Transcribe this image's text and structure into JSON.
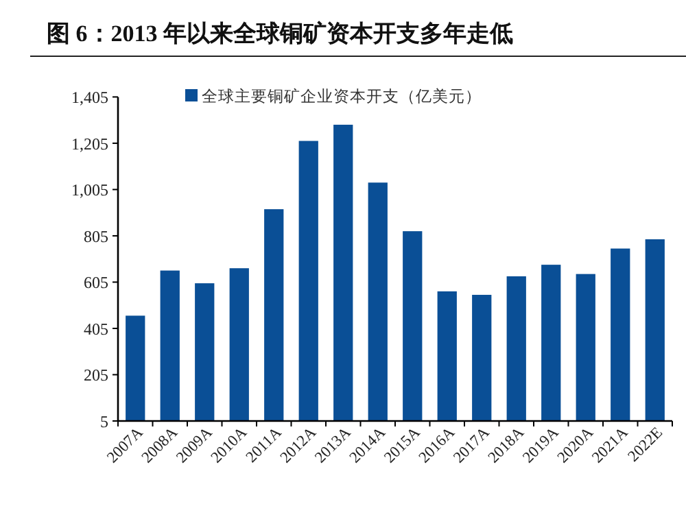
{
  "chart_data": {
    "type": "bar",
    "title": "图 6：2013 年以来全球铜矿资本开支多年走低",
    "categories": [
      "2007A",
      "2008A",
      "2009A",
      "2010A",
      "2011A",
      "2012A",
      "2013A",
      "2014A",
      "2015A",
      "2016A",
      "2017A",
      "2018A",
      "2019A",
      "2020A",
      "2021A",
      "2022E"
    ],
    "series": [
      {
        "name": "全球主要铜矿企业资本开支（亿美元）",
        "color": "#0a4f96",
        "values": [
          460,
          655,
          600,
          665,
          920,
          1215,
          1285,
          1035,
          825,
          565,
          550,
          630,
          680,
          640,
          750,
          790
        ]
      }
    ],
    "ylim": [
      5,
      1405
    ],
    "yticks": [
      5,
      205,
      405,
      605,
      805,
      {
        "value": 1005,
        "label": "1,005"
      },
      {
        "value": 1205,
        "label": "1,205"
      },
      {
        "value": 1405,
        "label": "1,405"
      }
    ],
    "grid": false,
    "legend": "top"
  }
}
